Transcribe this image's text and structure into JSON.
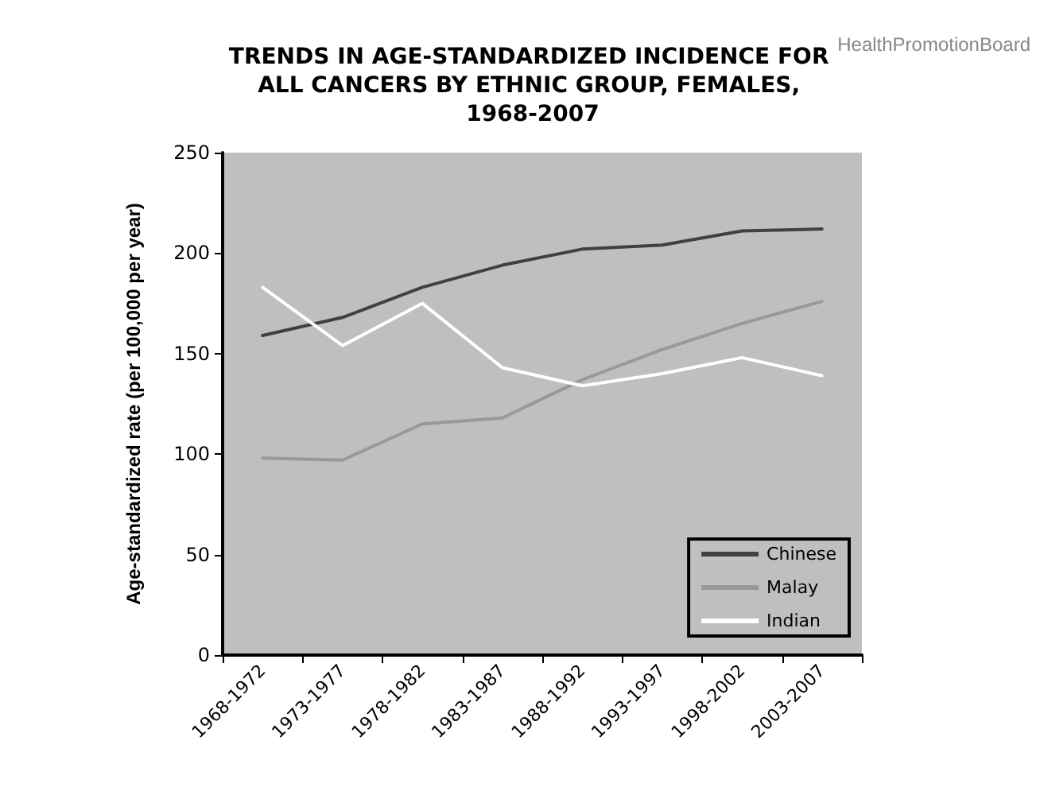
{
  "chart_data": {
    "type": "line",
    "title": "TRENDS IN AGE-STANDARDIZED INCIDENCE FOR ALL CANCERS BY ETHNIC GROUP, FEMALES, 1968-2007",
    "ylabel": "Age-standardized rate (per 100,000 per year)",
    "annotations": [
      "HealthPromotionBoard"
    ],
    "categories": [
      "1968-1972",
      "1973-1977",
      "1978-1982",
      "1983-1987",
      "1988-1992",
      "1993-1997",
      "1998-2002",
      "2003-2007"
    ],
    "series": [
      {
        "name": "Chinese",
        "color": "#404040",
        "values": [
          159,
          168,
          183,
          194,
          202,
          204,
          211,
          212
        ]
      },
      {
        "name": "Malay",
        "color": "#999999",
        "values": [
          98,
          97,
          115,
          118,
          137,
          152,
          165,
          176
        ]
      },
      {
        "name": "Indian",
        "color": "#ffffff",
        "values": [
          183,
          154,
          175,
          143,
          134,
          140,
          148,
          139
        ]
      }
    ],
    "ylim": [
      0,
      250
    ],
    "yticks": [
      0,
      50,
      100,
      150,
      200,
      250
    ],
    "grid": false,
    "legend": "bottom right",
    "marker": "none",
    "line_style": "solid"
  }
}
